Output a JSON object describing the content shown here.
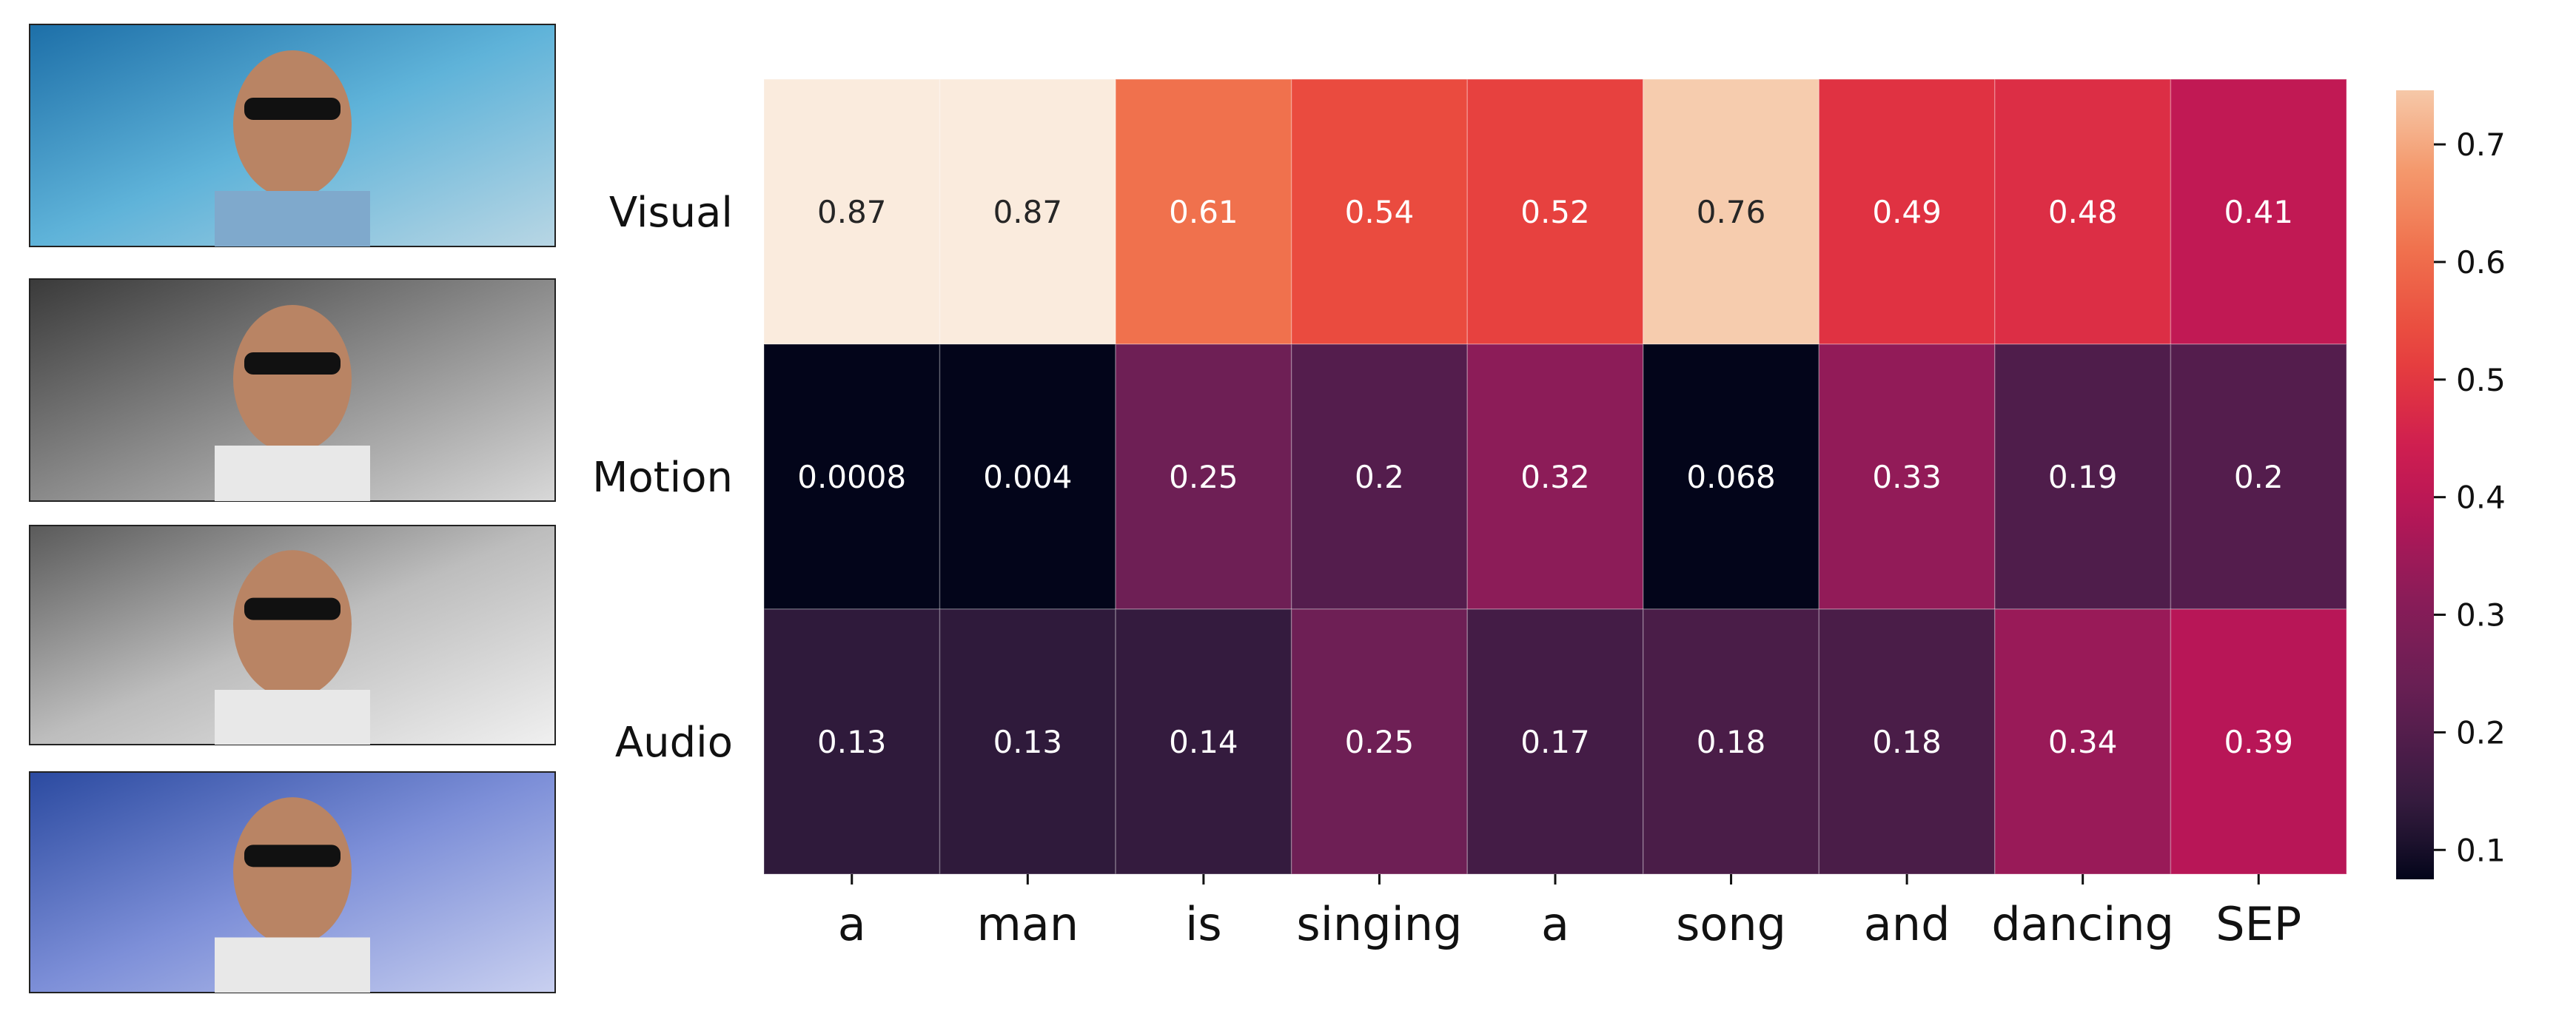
{
  "chart_data": {
    "type": "heatmap",
    "title": "",
    "xlabel": "",
    "ylabel": "",
    "rows": [
      "Visual",
      "Motion",
      "Audio"
    ],
    "columns": [
      "a",
      "man",
      "is",
      "singing",
      "a",
      "song",
      "and",
      "dancing",
      "SEP"
    ],
    "values": [
      [
        0.87,
        0.87,
        0.61,
        0.54,
        0.52,
        0.76,
        0.49,
        0.48,
        0.41
      ],
      [
        0.0008,
        0.004,
        0.25,
        0.2,
        0.32,
        0.068,
        0.33,
        0.19,
        0.2
      ],
      [
        0.13,
        0.13,
        0.14,
        0.25,
        0.17,
        0.18,
        0.18,
        0.34,
        0.39
      ]
    ],
    "annotations": [
      [
        "0.87",
        "0.87",
        "0.61",
        "0.54",
        "0.52",
        "0.76",
        "0.49",
        "0.48",
        "0.41"
      ],
      [
        "0.0008",
        "0.004",
        "0.25",
        "0.2",
        "0.32",
        "0.068",
        "0.33",
        "0.19",
        "0.2"
      ],
      [
        "0.13",
        "0.13",
        "0.14",
        "0.25",
        "0.17",
        "0.18",
        "0.18",
        "0.34",
        "0.39"
      ]
    ],
    "colorbar": {
      "range": [
        0.075,
        0.746
      ],
      "ticks": [
        "0.1",
        "0.2",
        "0.3",
        "0.4",
        "0.5",
        "0.6",
        "0.7"
      ],
      "tick_values": [
        0.1,
        0.2,
        0.3,
        0.4,
        0.5,
        0.6,
        0.7
      ],
      "colormap": [
        [
          0.075,
          "#03051a"
        ],
        [
          0.13,
          "#2f1a3b"
        ],
        [
          0.19,
          "#4f1d4b"
        ],
        [
          0.25,
          "#6e1f55"
        ],
        [
          0.32,
          "#8c1c58"
        ],
        [
          0.39,
          "#b81657"
        ],
        [
          0.45,
          "#d2204f"
        ],
        [
          0.5,
          "#e3373f"
        ],
        [
          0.54,
          "#ea4b3f"
        ],
        [
          0.61,
          "#f0714d"
        ],
        [
          0.68,
          "#f49a6e"
        ],
        [
          0.746,
          "#f6c8a8"
        ],
        [
          0.87,
          "#faebdd"
        ]
      ]
    },
    "dark_text_threshold": 0.7,
    "text_colors": {
      "light": "#ffffff",
      "dark": "#262626"
    }
  },
  "frames": {
    "count": 4,
    "palettes": [
      [
        "#1d6fa8",
        "#5fb3d9",
        "#b8d6e4"
      ],
      [
        "#3a3a3a",
        "#8a8a8a",
        "#d8d8d8"
      ],
      [
        "#5a5a5a",
        "#bdbdbd",
        "#f0f0f0"
      ],
      [
        "#2b4aa0",
        "#7d8fd8",
        "#c9d0f0"
      ]
    ]
  }
}
